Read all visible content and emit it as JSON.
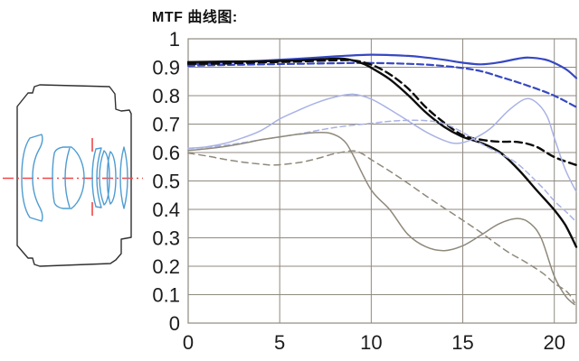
{
  "title": "MTF 曲线图:",
  "colors": {
    "background": "#ffffff",
    "grid": "#8f8a80",
    "frame": "#8f8a80",
    "axis_text": "#1c1c1c",
    "lens_outline": "#303030",
    "lens_element_blue": "#4e9cd2",
    "optical_axis_red": "#f04848",
    "curve_blue": "#3648c2",
    "curve_black": "#0c0c0c",
    "curve_lightblue": "#a9b2e4",
    "curve_gray": "#8f897b"
  },
  "lens_diagram": {
    "name": "lens cross-section",
    "element_count_drawn": 7,
    "has_optical_axis": true,
    "has_aperture_stop_marks": true
  },
  "chart_data": {
    "type": "line",
    "title": "MTF 曲线图:",
    "xlabel": "",
    "ylabel": "",
    "x_range": [
      0,
      21.2
    ],
    "y_range": [
      0,
      1
    ],
    "grid": true,
    "legend_position": "none",
    "x_ticks": [
      0,
      5,
      10,
      15,
      20
    ],
    "x_tick_labels": [
      "0",
      "5",
      "10",
      "15",
      "20"
    ],
    "y_ticks": [
      1,
      0.9,
      0.8,
      0.7,
      0.6,
      0.5,
      0.4,
      0.3,
      0.2,
      0.1,
      0
    ],
    "y_tick_labels": [
      "1",
      "0.9",
      "0.8",
      "0.7",
      "0.6",
      "0.5",
      "0.4",
      "0.3",
      "0.2",
      "0.1",
      "0"
    ],
    "series": [
      {
        "name": "blue-solid",
        "color": "#3648c2",
        "width": 2.2,
        "dash": "",
        "points": [
          [
            0,
            0.91
          ],
          [
            2,
            0.917
          ],
          [
            4,
            0.923
          ],
          [
            6,
            0.93
          ],
          [
            8,
            0.938
          ],
          [
            10,
            0.944
          ],
          [
            12,
            0.94
          ],
          [
            13,
            0.934
          ],
          [
            14,
            0.926
          ],
          [
            15,
            0.916
          ],
          [
            16,
            0.91
          ],
          [
            17,
            0.917
          ],
          [
            18,
            0.93
          ],
          [
            18.6,
            0.934
          ],
          [
            19.5,
            0.927
          ],
          [
            20,
            0.915
          ],
          [
            20.7,
            0.89
          ],
          [
            21.2,
            0.862
          ]
        ]
      },
      {
        "name": "blue-dashed",
        "color": "#3648c2",
        "width": 2.2,
        "dash": "7 4",
        "points": [
          [
            0,
            0.905
          ],
          [
            2,
            0.908
          ],
          [
            4,
            0.91
          ],
          [
            6,
            0.912
          ],
          [
            8,
            0.914
          ],
          [
            10,
            0.915
          ],
          [
            12,
            0.912
          ],
          [
            13.5,
            0.907
          ],
          [
            15,
            0.897
          ],
          [
            16,
            0.886
          ],
          [
            17,
            0.867
          ],
          [
            18,
            0.847
          ],
          [
            19,
            0.825
          ],
          [
            20,
            0.8
          ],
          [
            21.2,
            0.76
          ]
        ]
      },
      {
        "name": "black-solid",
        "color": "#0c0c0c",
        "width": 2.4,
        "dash": "",
        "points": [
          [
            0,
            0.918
          ],
          [
            2,
            0.92
          ],
          [
            4,
            0.921
          ],
          [
            6,
            0.924
          ],
          [
            7.5,
            0.929
          ],
          [
            8.5,
            0.93
          ],
          [
            9.5,
            0.914
          ],
          [
            10,
            0.898
          ],
          [
            11,
            0.858
          ],
          [
            12,
            0.803
          ],
          [
            13,
            0.74
          ],
          [
            14,
            0.69
          ],
          [
            15,
            0.655
          ],
          [
            16,
            0.634
          ],
          [
            17,
            0.602
          ],
          [
            18,
            0.543
          ],
          [
            19,
            0.47
          ],
          [
            20,
            0.398
          ],
          [
            20.6,
            0.345
          ],
          [
            21.2,
            0.268
          ]
        ]
      },
      {
        "name": "black-dashed",
        "color": "#0c0c0c",
        "width": 2.4,
        "dash": "8 5",
        "points": [
          [
            0,
            0.912
          ],
          [
            2,
            0.913
          ],
          [
            4,
            0.917
          ],
          [
            6,
            0.92
          ],
          [
            8,
            0.924
          ],
          [
            9,
            0.924
          ],
          [
            10,
            0.909
          ],
          [
            11,
            0.876
          ],
          [
            12,
            0.826
          ],
          [
            13,
            0.758
          ],
          [
            14,
            0.704
          ],
          [
            15,
            0.661
          ],
          [
            16,
            0.645
          ],
          [
            17,
            0.638
          ],
          [
            18,
            0.637
          ],
          [
            19,
            0.621
          ],
          [
            20,
            0.584
          ],
          [
            21.2,
            0.556
          ]
        ]
      },
      {
        "name": "lightblue-solid",
        "color": "#a9b2e4",
        "width": 1.5,
        "dash": "",
        "points": [
          [
            0,
            0.615
          ],
          [
            1,
            0.62
          ],
          [
            2,
            0.632
          ],
          [
            3,
            0.652
          ],
          [
            4,
            0.678
          ],
          [
            5,
            0.718
          ],
          [
            6,
            0.748
          ],
          [
            7,
            0.775
          ],
          [
            8,
            0.795
          ],
          [
            9,
            0.805
          ],
          [
            10,
            0.788
          ],
          [
            11,
            0.752
          ],
          [
            12,
            0.712
          ],
          [
            13,
            0.672
          ],
          [
            14,
            0.642
          ],
          [
            14.7,
            0.632
          ],
          [
            15.5,
            0.646
          ],
          [
            16.5,
            0.684
          ],
          [
            17.5,
            0.748
          ],
          [
            18.4,
            0.788
          ],
          [
            19,
            0.777
          ],
          [
            19.6,
            0.728
          ],
          [
            20,
            0.652
          ],
          [
            20.6,
            0.54
          ],
          [
            21.2,
            0.462
          ]
        ]
      },
      {
        "name": "lightblue-dashed",
        "color": "#a9b2e4",
        "width": 1.5,
        "dash": "6 4",
        "points": [
          [
            0,
            0.613
          ],
          [
            2,
            0.625
          ],
          [
            4,
            0.645
          ],
          [
            6,
            0.665
          ],
          [
            8,
            0.688
          ],
          [
            10,
            0.703
          ],
          [
            11.5,
            0.712
          ],
          [
            13,
            0.712
          ],
          [
            14,
            0.701
          ],
          [
            15,
            0.671
          ],
          [
            16,
            0.631
          ],
          [
            17,
            0.597
          ],
          [
            18,
            0.56
          ],
          [
            19.3,
            0.48
          ],
          [
            20,
            0.43
          ],
          [
            20.7,
            0.388
          ],
          [
            21.2,
            0.356
          ]
        ]
      },
      {
        "name": "gray-solid",
        "color": "#8f897b",
        "width": 1.5,
        "dash": "",
        "points": [
          [
            0,
            0.607
          ],
          [
            1,
            0.613
          ],
          [
            2,
            0.621
          ],
          [
            3,
            0.632
          ],
          [
            4,
            0.645
          ],
          [
            5,
            0.655
          ],
          [
            6,
            0.664
          ],
          [
            7,
            0.67
          ],
          [
            7.8,
            0.667
          ],
          [
            8.5,
            0.642
          ],
          [
            9,
            0.592
          ],
          [
            10,
            0.468
          ],
          [
            11,
            0.4
          ],
          [
            12,
            0.312
          ],
          [
            13,
            0.268
          ],
          [
            14,
            0.255
          ],
          [
            15,
            0.272
          ],
          [
            16,
            0.31
          ],
          [
            17,
            0.35
          ],
          [
            18,
            0.368
          ],
          [
            18.7,
            0.35
          ],
          [
            19.3,
            0.296
          ],
          [
            20,
            0.165
          ],
          [
            20.6,
            0.096
          ],
          [
            21.1,
            0.065
          ]
        ]
      },
      {
        "name": "gray-dashed",
        "color": "#8f897b",
        "width": 1.5,
        "dash": "7 5",
        "points": [
          [
            0,
            0.598
          ],
          [
            1,
            0.588
          ],
          [
            2,
            0.576
          ],
          [
            3,
            0.566
          ],
          [
            4,
            0.559
          ],
          [
            4.7,
            0.556
          ],
          [
            6,
            0.564
          ],
          [
            7,
            0.578
          ],
          [
            8,
            0.596
          ],
          [
            9,
            0.606
          ],
          [
            9.5,
            0.596
          ],
          [
            10,
            0.575
          ],
          [
            11,
            0.535
          ],
          [
            12,
            0.492
          ],
          [
            13,
            0.447
          ],
          [
            14,
            0.404
          ],
          [
            15,
            0.362
          ],
          [
            16,
            0.318
          ],
          [
            17.4,
            0.253
          ],
          [
            18.4,
            0.216
          ],
          [
            19.4,
            0.174
          ],
          [
            20,
            0.14
          ],
          [
            20.7,
            0.11
          ],
          [
            21.1,
            0.072
          ]
        ]
      }
    ]
  }
}
